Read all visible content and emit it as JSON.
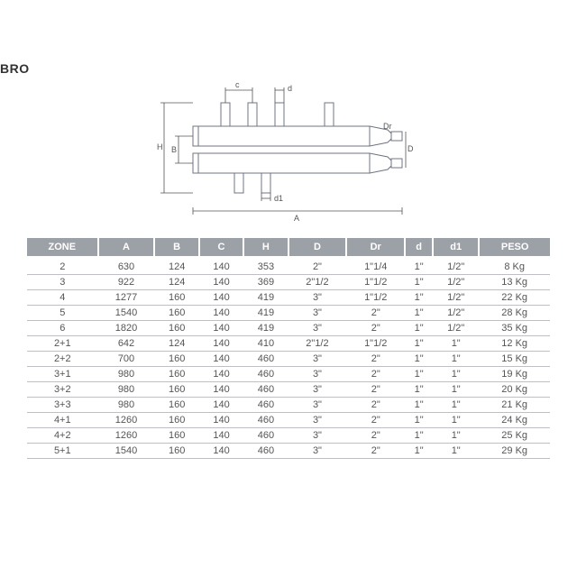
{
  "heading": "BRO",
  "diagram": {
    "labels": {
      "A": "A",
      "B": "B",
      "H": "H",
      "c": "c",
      "d": "d",
      "d1": "d1",
      "D": "D",
      "Dr": "Dr"
    },
    "colors": {
      "fill": "#e4e5e8",
      "stroke": "#6f7480",
      "dim": "#555555"
    }
  },
  "table": {
    "headers": [
      "ZONE",
      "A",
      "B",
      "C",
      "H",
      "D",
      "Dr",
      "d",
      "d1",
      "PESO"
    ],
    "header_bg": "#9ca0a7",
    "header_fg": "#ffffff",
    "row_border": "#bfc0c4",
    "text_color": "#555555",
    "rows": [
      [
        "2",
        "630",
        "124",
        "140",
        "353",
        "2\"",
        "1\"1/4",
        "1\"",
        "1/2\"",
        "8 Kg"
      ],
      [
        "3",
        "922",
        "124",
        "140",
        "369",
        "2\"1/2",
        "1\"1/2",
        "1\"",
        "1/2\"",
        "13 Kg"
      ],
      [
        "4",
        "1277",
        "160",
        "140",
        "419",
        "3\"",
        "1\"1/2",
        "1\"",
        "1/2\"",
        "22 Kg"
      ],
      [
        "5",
        "1540",
        "160",
        "140",
        "419",
        "3\"",
        "2\"",
        "1\"",
        "1/2\"",
        "28 Kg"
      ],
      [
        "6",
        "1820",
        "160",
        "140",
        "419",
        "3\"",
        "2\"",
        "1\"",
        "1/2\"",
        "35 Kg"
      ],
      [
        "2+1",
        "642",
        "124",
        "140",
        "410",
        "2\"1/2",
        "1\"1/2",
        "1\"",
        "1\"",
        "12 Kg"
      ],
      [
        "2+2",
        "700",
        "160",
        "140",
        "460",
        "3\"",
        "2\"",
        "1\"",
        "1\"",
        "15 Kg"
      ],
      [
        "3+1",
        "980",
        "160",
        "140",
        "460",
        "3\"",
        "2\"",
        "1\"",
        "1\"",
        "19 Kg"
      ],
      [
        "3+2",
        "980",
        "160",
        "140",
        "460",
        "3\"",
        "2\"",
        "1\"",
        "1\"",
        "20 Kg"
      ],
      [
        "3+3",
        "980",
        "160",
        "140",
        "460",
        "3\"",
        "2\"",
        "1\"",
        "1\"",
        "21 Kg"
      ],
      [
        "4+1",
        "1260",
        "160",
        "140",
        "460",
        "3\"",
        "2\"",
        "1\"",
        "1\"",
        "24 Kg"
      ],
      [
        "4+2",
        "1260",
        "160",
        "140",
        "460",
        "3\"",
        "2\"",
        "1\"",
        "1\"",
        "25 Kg"
      ],
      [
        "5+1",
        "1540",
        "160",
        "140",
        "460",
        "3\"",
        "2\"",
        "1\"",
        "1\"",
        "29 Kg"
      ]
    ]
  }
}
